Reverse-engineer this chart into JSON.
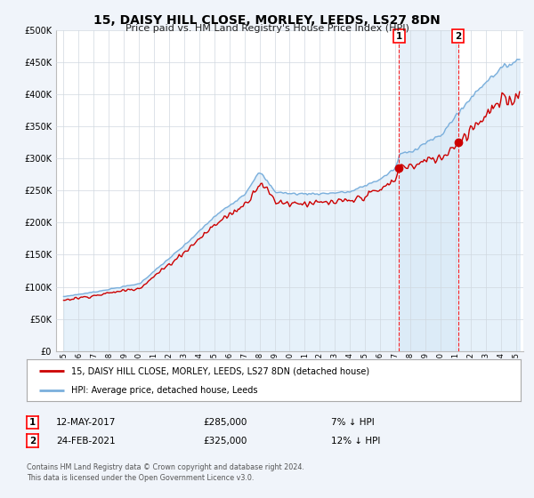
{
  "title": "15, DAISY HILL CLOSE, MORLEY, LEEDS, LS27 8DN",
  "subtitle": "Price paid vs. HM Land Registry's House Price Index (HPI)",
  "yticks": [
    0,
    50000,
    100000,
    150000,
    200000,
    250000,
    300000,
    350000,
    400000,
    450000,
    500000
  ],
  "ytick_labels": [
    "£0",
    "£50K",
    "£100K",
    "£150K",
    "£200K",
    "£250K",
    "£300K",
    "£350K",
    "£400K",
    "£450K",
    "£500K"
  ],
  "hpi_color": "#7aafdc",
  "hpi_fill_color": "#d6e8f7",
  "price_color": "#cc0000",
  "marker1_month": 267,
  "marker1_price": 285000,
  "marker1_label": "12-MAY-2017",
  "marker1_pct": "7% ↓ HPI",
  "marker2_month": 314,
  "marker2_price": 325000,
  "marker2_label": "24-FEB-2021",
  "marker2_pct": "12% ↓ HPI",
  "legend_line1": "15, DAISY HILL CLOSE, MORLEY, LEEDS, LS27 8DN (detached house)",
  "legend_line2": "HPI: Average price, detached house, Leeds",
  "footnote1": "Contains HM Land Registry data © Crown copyright and database right 2024.",
  "footnote2": "This data is licensed under the Open Government Licence v3.0.",
  "background_color": "#f0f4fa",
  "plot_bg_color": "#ffffff",
  "highlight_color": "#ddeaf7"
}
